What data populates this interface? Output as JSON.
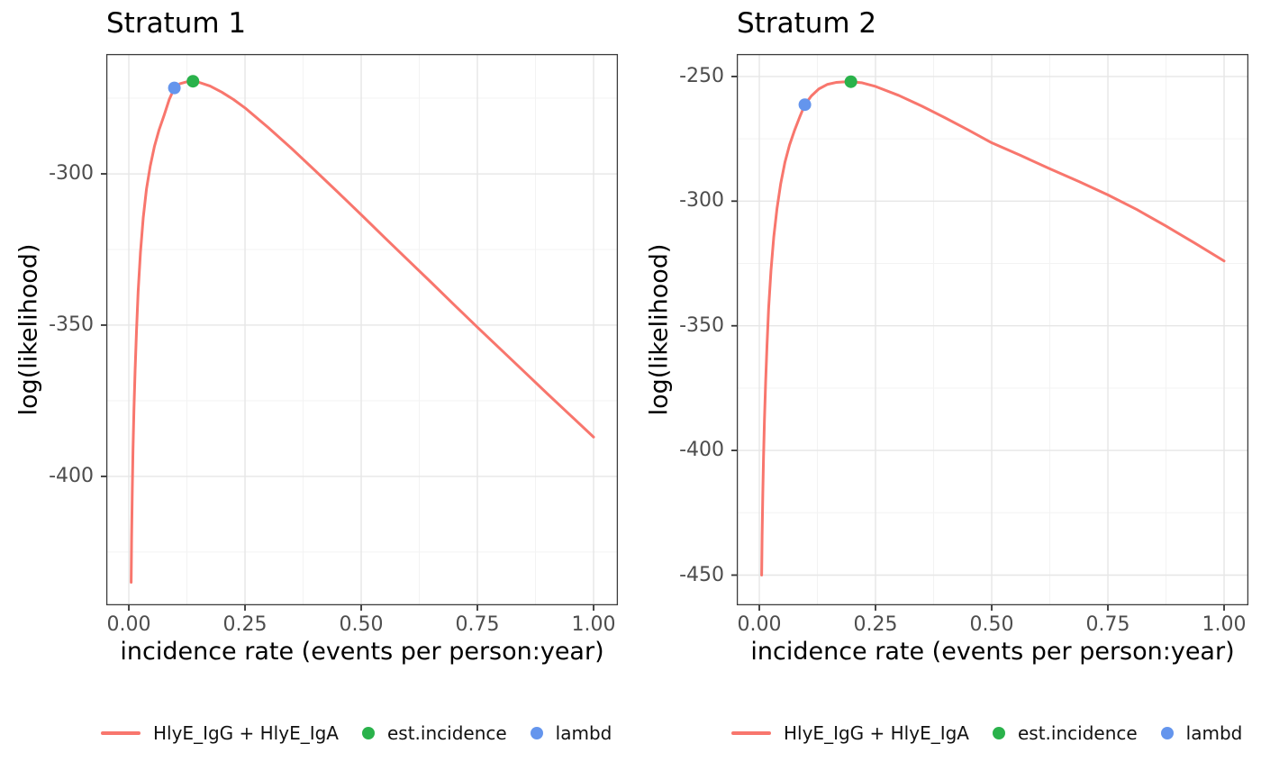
{
  "colors": {
    "background": "#FFFFFF",
    "curve": "#F8766D",
    "est_incidence_point": "#2AB24B",
    "lambda_point": "#6495ED",
    "axis_text": "#4D4D4D",
    "title_text": "#000000",
    "grid_major": "#E6E6E6",
    "grid_minor": "#F3F3F3",
    "panel_border": "#3D3D3D",
    "tick_mark": "#333333"
  },
  "legend": {
    "entries": [
      {
        "swatch": "line",
        "color": "#F8766D",
        "label": "HlyE_IgG + HlyE_IgA"
      },
      {
        "swatch": "point",
        "color": "#2AB24B",
        "label": "est.incidence"
      },
      {
        "swatch": "point",
        "color": "#6495ED",
        "label": "lambd"
      }
    ]
  },
  "chart_data": [
    {
      "type": "line",
      "title": "Stratum 1",
      "xlabel": "incidence rate (events per person:year)",
      "ylabel": "log(likelihood)",
      "legend_position": "bottom",
      "grid": true,
      "xlim": [
        -0.0485,
        1.0523
      ],
      "ylim": [
        -442.6,
        -260.4
      ],
      "x_ticks": [
        0,
        0.25,
        0.5,
        0.75,
        1.0
      ],
      "x_tick_labels": [
        "0.00",
        "0.25",
        "0.50",
        "0.75",
        "1.00"
      ],
      "y_ticks": [
        -300,
        -350,
        -400
      ],
      "y_tick_labels": [
        "-300",
        "-350",
        "-400"
      ],
      "series": [
        {
          "name": "HlyE_IgG + HlyE_IgA",
          "color": "#F8766D",
          "x": [
            0.005,
            0.006,
            0.0075,
            0.009,
            0.011,
            0.0135,
            0.0165,
            0.02,
            0.025,
            0.031,
            0.038,
            0.046,
            0.055,
            0.065,
            0.076,
            0.087,
            0.098,
            0.11,
            0.124,
            0.138,
            0.15,
            0.175,
            0.2,
            0.225,
            0.25,
            0.3,
            0.35,
            0.4,
            0.45,
            0.5,
            0.55,
            0.6,
            0.65,
            0.7,
            0.75,
            0.8,
            0.85,
            0.9,
            0.95,
            1.0
          ],
          "y": [
            -435,
            -420,
            -404,
            -391,
            -378,
            -365,
            -352,
            -339,
            -326,
            -314.5,
            -305,
            -297.5,
            -291,
            -285.5,
            -280.6,
            -275.4,
            -271.6,
            -270.2,
            -269.6,
            -269.4,
            -269.7,
            -271.0,
            -273.0,
            -275.4,
            -278.2,
            -284.7,
            -291.6,
            -298.8,
            -306.1,
            -313.5,
            -321.0,
            -328.4,
            -335.8,
            -343.3,
            -350.7,
            -358.0,
            -365.3,
            -372.6,
            -379.8,
            -387.0
          ]
        }
      ],
      "markers": [
        {
          "name": "lambd",
          "color": "#6495ED",
          "x": 0.098,
          "y": -271.6
        },
        {
          "name": "est.incidence",
          "color": "#2AB24B",
          "x": 0.138,
          "y": -269.4
        }
      ]
    },
    {
      "type": "line",
      "title": "Stratum 2",
      "xlabel": "incidence rate (events per person:year)",
      "ylabel": "log(likelihood)",
      "legend_position": "bottom",
      "grid": true,
      "xlim": [
        -0.0485,
        1.0523
      ],
      "ylim": [
        -462.1,
        -241.0
      ],
      "x_ticks": [
        0,
        0.25,
        0.5,
        0.75,
        1.0
      ],
      "x_tick_labels": [
        "0.00",
        "0.25",
        "0.50",
        "0.75",
        "1.00"
      ],
      "y_ticks": [
        -250,
        -300,
        -350,
        -400,
        -450
      ],
      "y_tick_labels": [
        "-250",
        "-300",
        "-350",
        "-400",
        "-450"
      ],
      "series": [
        {
          "name": "HlyE_IgG + HlyE_IgA",
          "color": "#F8766D",
          "x": [
            0.005,
            0.006,
            0.0075,
            0.009,
            0.011,
            0.0135,
            0.0165,
            0.02,
            0.025,
            0.031,
            0.038,
            0.046,
            0.055,
            0.065,
            0.076,
            0.087,
            0.098,
            0.112,
            0.128,
            0.146,
            0.165,
            0.18,
            0.197,
            0.22,
            0.25,
            0.3,
            0.35,
            0.4,
            0.45,
            0.5,
            0.5625,
            0.625,
            0.6875,
            0.75,
            0.8125,
            0.875,
            0.9375,
            1.0
          ],
          "y": [
            -450,
            -434,
            -417,
            -403,
            -388,
            -373,
            -358,
            -343,
            -328,
            -314.5,
            -303,
            -293,
            -284.5,
            -277.5,
            -271.5,
            -266.2,
            -261.3,
            -257.8,
            -255.0,
            -253.2,
            -252.4,
            -252.2,
            -252.1,
            -252.5,
            -254.0,
            -257.6,
            -261.9,
            -266.6,
            -271.5,
            -276.6,
            -281.7,
            -287.0,
            -292.1,
            -297.5,
            -303.4,
            -310.0,
            -316.9,
            -324.0
          ]
        }
      ],
      "markers": [
        {
          "name": "lambd",
          "color": "#6495ED",
          "x": 0.098,
          "y": -261.3
        },
        {
          "name": "est.incidence",
          "color": "#2AB24B",
          "x": 0.197,
          "y": -252.1
        }
      ]
    }
  ]
}
